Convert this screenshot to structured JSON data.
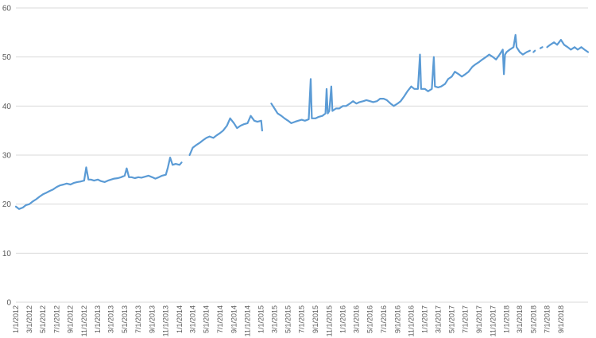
{
  "chart_data": {
    "type": "line",
    "title": "",
    "xlabel": "",
    "ylabel": "",
    "ylim": [
      0,
      60
    ],
    "yticks": [
      0,
      10,
      20,
      30,
      40,
      50,
      60
    ],
    "grid": true,
    "legend": "none",
    "color": "#5b9bd5",
    "x_start": "1/1/2012",
    "x_end": "12/31/2018",
    "xtick_labels": [
      "1/1/2012",
      "3/1/2012",
      "5/1/2012",
      "7/1/2012",
      "9/1/2012",
      "11/1/2012",
      "1/1/2013",
      "3/1/2013",
      "5/1/2013",
      "7/1/2013",
      "9/1/2013",
      "11/1/2013",
      "1/1/2014",
      "3/1/2014",
      "5/1/2014",
      "7/1/2014",
      "9/1/2014",
      "11/1/2014",
      "1/1/2015",
      "3/1/2015",
      "5/1/2015",
      "7/1/2015",
      "9/1/2015",
      "11/1/2015",
      "1/1/2016",
      "3/1/2016",
      "5/1/2016",
      "7/1/2016",
      "9/1/2016",
      "11/1/2016",
      "1/1/2017",
      "3/1/2017",
      "5/1/2017",
      "7/1/2017",
      "9/1/2017",
      "11/1/2017",
      "1/1/2018",
      "3/1/2018",
      "5/1/2018",
      "7/1/2018",
      "9/1/2018"
    ],
    "segments": [
      [
        [
          "1/1/2012",
          19.5
        ],
        [
          "1/15/2012",
          19.0
        ],
        [
          "2/1/2012",
          19.3
        ],
        [
          "2/15/2012",
          19.8
        ],
        [
          "3/1/2012",
          20.0
        ],
        [
          "3/15/2012",
          20.5
        ],
        [
          "4/1/2012",
          21.0
        ],
        [
          "4/15/2012",
          21.5
        ],
        [
          "5/1/2012",
          22.0
        ],
        [
          "5/15/2012",
          22.3
        ],
        [
          "6/1/2012",
          22.7
        ],
        [
          "6/15/2012",
          23.0
        ],
        [
          "7/1/2012",
          23.5
        ],
        [
          "7/15/2012",
          23.8
        ],
        [
          "8/1/2012",
          24.0
        ],
        [
          "8/15/2012",
          24.2
        ],
        [
          "9/1/2012",
          24.0
        ],
        [
          "9/15/2012",
          24.3
        ],
        [
          "10/1/2012",
          24.5
        ],
        [
          "10/15/2012",
          24.6
        ],
        [
          "11/1/2012",
          24.8
        ],
        [
          "11/10/2012",
          27.5
        ],
        [
          "11/20/2012",
          25.0
        ],
        [
          "12/1/2012",
          25.0
        ],
        [
          "12/15/2012",
          24.8
        ],
        [
          "1/1/2013",
          25.0
        ],
        [
          "1/15/2013",
          24.7
        ],
        [
          "2/1/2013",
          24.5
        ],
        [
          "2/15/2013",
          24.8
        ],
        [
          "3/1/2013",
          25.0
        ],
        [
          "3/15/2013",
          25.2
        ],
        [
          "4/1/2013",
          25.3
        ],
        [
          "4/15/2013",
          25.5
        ],
        [
          "5/1/2013",
          25.8
        ],
        [
          "5/10/2013",
          27.3
        ],
        [
          "5/20/2013",
          25.5
        ],
        [
          "6/1/2013",
          25.5
        ],
        [
          "6/15/2013",
          25.3
        ],
        [
          "7/1/2013",
          25.5
        ],
        [
          "7/15/2013",
          25.4
        ],
        [
          "8/1/2013",
          25.6
        ],
        [
          "8/15/2013",
          25.8
        ],
        [
          "9/1/2013",
          25.5
        ],
        [
          "9/15/2013",
          25.2
        ],
        [
          "10/1/2013",
          25.5
        ],
        [
          "10/15/2013",
          25.8
        ],
        [
          "11/1/2013",
          26.0
        ],
        [
          "11/10/2013",
          27.5
        ],
        [
          "11/20/2013",
          29.5
        ],
        [
          "12/1/2013",
          28.0
        ],
        [
          "12/15/2013",
          28.2
        ],
        [
          "1/1/2014",
          28.0
        ],
        [
          "1/10/2014",
          28.5
        ]
      ],
      [
        [
          "2/15/2014",
          30.0
        ],
        [
          "3/1/2014",
          31.5
        ],
        [
          "3/15/2014",
          32.0
        ],
        [
          "4/1/2014",
          32.5
        ],
        [
          "4/15/2014",
          33.0
        ],
        [
          "5/1/2014",
          33.5
        ],
        [
          "5/15/2014",
          33.8
        ],
        [
          "6/1/2014",
          33.5
        ],
        [
          "6/15/2014",
          34.0
        ],
        [
          "7/1/2014",
          34.5
        ],
        [
          "7/15/2014",
          35.0
        ],
        [
          "8/1/2014",
          36.0
        ],
        [
          "8/15/2014",
          37.5
        ],
        [
          "9/1/2014",
          36.5
        ],
        [
          "9/15/2014",
          35.5
        ],
        [
          "10/1/2014",
          36.0
        ],
        [
          "10/15/2014",
          36.3
        ],
        [
          "11/1/2014",
          36.5
        ],
        [
          "11/15/2014",
          38.0
        ],
        [
          "12/1/2014",
          37.0
        ],
        [
          "12/15/2014",
          36.8
        ],
        [
          "1/1/2015",
          37.0
        ],
        [
          "1/5/2015",
          35.0
        ]
      ],
      [
        [
          "2/15/2015",
          40.5
        ],
        [
          "3/1/2015",
          39.5
        ],
        [
          "3/15/2015",
          38.5
        ],
        [
          "4/1/2015",
          38.0
        ],
        [
          "4/15/2015",
          37.5
        ],
        [
          "5/1/2015",
          37.0
        ],
        [
          "5/15/2015",
          36.5
        ],
        [
          "6/1/2015",
          36.8
        ],
        [
          "6/15/2015",
          37.0
        ],
        [
          "7/1/2015",
          37.2
        ],
        [
          "7/15/2015",
          37.0
        ],
        [
          "8/1/2015",
          37.3
        ],
        [
          "8/10/2015",
          45.5
        ],
        [
          "8/15/2015",
          37.5
        ],
        [
          "9/1/2015",
          37.5
        ],
        [
          "9/15/2015",
          37.8
        ],
        [
          "10/1/2015",
          38.0
        ],
        [
          "10/15/2015",
          38.5
        ],
        [
          "10/20/2015",
          43.5
        ],
        [
          "10/25/2015",
          38.5
        ],
        [
          "11/1/2015",
          39.0
        ],
        [
          "11/10/2015",
          44.0
        ],
        [
          "11/15/2015",
          39.0
        ],
        [
          "12/1/2015",
          39.5
        ],
        [
          "12/15/2015",
          39.5
        ],
        [
          "1/1/2016",
          40.0
        ],
        [
          "1/15/2016",
          40.0
        ],
        [
          "2/1/2016",
          40.5
        ],
        [
          "2/15/2016",
          41.0
        ],
        [
          "3/1/2016",
          40.5
        ],
        [
          "3/15/2016",
          40.8
        ],
        [
          "4/1/2016",
          41.0
        ],
        [
          "4/15/2016",
          41.2
        ],
        [
          "5/1/2016",
          41.0
        ],
        [
          "5/15/2016",
          40.8
        ],
        [
          "6/1/2016",
          41.0
        ],
        [
          "6/15/2016",
          41.5
        ],
        [
          "7/1/2016",
          41.5
        ],
        [
          "7/15/2016",
          41.2
        ],
        [
          "8/1/2016",
          40.5
        ],
        [
          "8/15/2016",
          40.0
        ],
        [
          "9/1/2016",
          40.5
        ],
        [
          "9/15/2016",
          41.0
        ],
        [
          "10/1/2016",
          42.0
        ],
        [
          "10/15/2016",
          43.0
        ],
        [
          "11/1/2016",
          44.0
        ],
        [
          "11/15/2016",
          43.5
        ],
        [
          "12/1/2016",
          43.5
        ],
        [
          "12/10/2016",
          50.5
        ],
        [
          "12/15/2016",
          43.5
        ],
        [
          "1/1/2017",
          43.5
        ],
        [
          "1/15/2017",
          43.0
        ],
        [
          "2/1/2017",
          43.5
        ],
        [
          "2/10/2017",
          50.0
        ],
        [
          "2/15/2017",
          44.0
        ],
        [
          "3/1/2017",
          43.8
        ],
        [
          "3/15/2017",
          44.0
        ],
        [
          "4/1/2017",
          44.5
        ],
        [
          "4/15/2017",
          45.5
        ],
        [
          "5/1/2017",
          46.0
        ],
        [
          "5/15/2017",
          47.0
        ],
        [
          "6/1/2017",
          46.5
        ],
        [
          "6/15/2017",
          46.0
        ],
        [
          "7/1/2017",
          46.5
        ],
        [
          "7/15/2017",
          47.0
        ],
        [
          "8/1/2017",
          48.0
        ],
        [
          "8/15/2017",
          48.5
        ],
        [
          "9/1/2017",
          49.0
        ],
        [
          "9/15/2017",
          49.5
        ],
        [
          "10/1/2017",
          50.0
        ],
        [
          "10/15/2017",
          50.5
        ],
        [
          "11/1/2017",
          50.0
        ],
        [
          "11/15/2017",
          49.5
        ],
        [
          "12/1/2017",
          50.5
        ],
        [
          "12/15/2017",
          51.5
        ],
        [
          "12/20/2017",
          46.5
        ],
        [
          "12/25/2017",
          50.5
        ],
        [
          "1/1/2018",
          51.0
        ],
        [
          "1/15/2018",
          51.5
        ],
        [
          "2/1/2018",
          52.0
        ],
        [
          "2/10/2018",
          54.5
        ],
        [
          "2/15/2018",
          52.0
        ],
        [
          "3/1/2018",
          51.0
        ],
        [
          "3/15/2018",
          50.5
        ],
        [
          "4/1/2018",
          51.0
        ],
        [
          "4/15/2018",
          51.3
        ]
      ],
      [
        [
          "5/1/2018",
          51.0
        ],
        [
          "5/8/2018",
          51.3
        ]
      ],
      [
        [
          "6/1/2018",
          51.8
        ],
        [
          "6/10/2018",
          52.0
        ]
      ],
      [
        [
          "7/1/2018",
          52.0
        ],
        [
          "7/15/2018",
          52.5
        ],
        [
          "8/1/2018",
          53.0
        ],
        [
          "8/15/2018",
          52.5
        ],
        [
          "9/1/2018",
          53.5
        ],
        [
          "9/15/2018",
          52.5
        ],
        [
          "10/1/2018",
          52.0
        ],
        [
          "10/15/2018",
          51.5
        ],
        [
          "11/1/2018",
          52.0
        ],
        [
          "11/15/2018",
          51.5
        ],
        [
          "12/1/2018",
          52.0
        ],
        [
          "12/15/2018",
          51.5
        ],
        [
          "12/31/2018",
          51.0
        ]
      ]
    ]
  }
}
